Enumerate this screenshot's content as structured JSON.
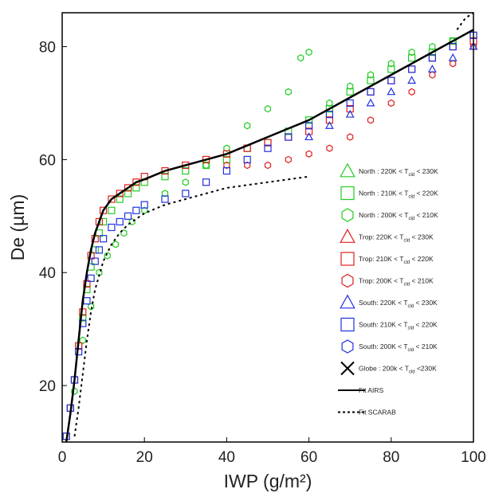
{
  "chart_data": {
    "type": "scatter",
    "xlabel": "IWP (g/m²)",
    "ylabel": "De (µm)",
    "xlim": [
      0,
      100
    ],
    "ylim": [
      10,
      86
    ],
    "xticks": [
      0,
      20,
      40,
      60,
      80,
      100
    ],
    "yticks": [
      20,
      40,
      60,
      80
    ],
    "grid": false,
    "legend_position": "right",
    "legend": [
      {
        "name": "North : 220K < T",
        "sub": "cld",
        "tail": " < 230K",
        "marker": "triangle",
        "color": "#22cc22"
      },
      {
        "name": "North : 210K < T",
        "sub": "cld",
        "tail": " < 220K",
        "marker": "square",
        "color": "#22cc22"
      },
      {
        "name": "North : 200K < T",
        "sub": "cld",
        "tail": " < 210K",
        "marker": "hexagon",
        "color": "#22cc22"
      },
      {
        "name": "Trop: 220K < T",
        "sub": "cld",
        "tail": " < 230K",
        "marker": "triangle",
        "color": "#e02020"
      },
      {
        "name": "Trop: 210K < T",
        "sub": "cld",
        "tail": " < 220K",
        "marker": "square",
        "color": "#e02020"
      },
      {
        "name": "Trop: 200K < T",
        "sub": "cld",
        "tail": " < 210K",
        "marker": "hexagon",
        "color": "#e02020"
      },
      {
        "name": "South: 220K < T",
        "sub": "cld",
        "tail": " < 230K",
        "marker": "triangle",
        "color": "#2030e0"
      },
      {
        "name": "South: 210K < T",
        "sub": "cld",
        "tail": " < 220K",
        "marker": "square",
        "color": "#2030e0"
      },
      {
        "name": "South: 200K < T",
        "sub": "cld",
        "tail": " < 210K",
        "marker": "hexagon",
        "color": "#2030e0"
      },
      {
        "name": "Globe : 200k < T",
        "sub": "cld",
        "tail": " <230K",
        "marker": "x",
        "color": "#000000"
      },
      {
        "name": "Fit AIRS",
        "marker": "solid-line",
        "color": "#000000"
      },
      {
        "name": "Fit SCARAB",
        "marker": "dotted-line",
        "color": "#000000"
      }
    ],
    "series": [
      {
        "legend_index": 1,
        "x": [
          1,
          2,
          3,
          4,
          5,
          6,
          7,
          8,
          9,
          10,
          12,
          14,
          16,
          18,
          20,
          25,
          30,
          35,
          40,
          45,
          50,
          55,
          60,
          65,
          70,
          75,
          80,
          85,
          90,
          95,
          100
        ],
        "y": [
          11,
          16,
          21,
          27,
          32,
          37,
          41,
          44,
          47,
          49,
          51,
          53,
          54,
          55,
          56,
          57,
          58,
          59,
          60,
          62,
          63,
          65,
          67,
          69,
          72,
          74,
          76,
          78,
          79,
          81,
          82
        ]
      },
      {
        "legend_index": 2,
        "x": [
          3,
          5,
          7,
          9,
          11,
          13,
          15,
          17,
          20,
          25,
          30,
          35,
          40,
          45,
          50,
          55,
          58,
          60,
          65,
          70,
          75,
          80,
          85,
          90,
          95
        ],
        "y": [
          19,
          28,
          34,
          40,
          43,
          45,
          47,
          49,
          51,
          54,
          56,
          59,
          62,
          66,
          69,
          72,
          78,
          79,
          70,
          73,
          75,
          77,
          79,
          80,
          81
        ]
      },
      {
        "legend_index": 4,
        "x": [
          1,
          2,
          3,
          4,
          5,
          6,
          7,
          8,
          9,
          10,
          12,
          14,
          16,
          18,
          20,
          25,
          30,
          35,
          40,
          45,
          50,
          55,
          60,
          65,
          70,
          75,
          80,
          85,
          90,
          95,
          100
        ],
        "y": [
          11,
          16,
          21,
          27,
          33,
          38,
          43,
          46,
          49,
          51,
          53,
          54,
          55,
          56,
          57,
          58,
          59,
          60,
          61,
          62,
          63,
          64,
          65,
          67,
          69,
          72,
          74,
          76,
          78,
          80,
          81
        ]
      },
      {
        "legend_index": 5,
        "x": [
          40,
          45,
          50,
          55,
          60,
          65,
          70,
          75,
          80,
          85,
          90,
          95,
          100
        ],
        "y": [
          59,
          59,
          59,
          60,
          61,
          62,
          64,
          67,
          70,
          72,
          75,
          77,
          80
        ]
      },
      {
        "legend_index": 7,
        "x": [
          1,
          2,
          3,
          4,
          5,
          6,
          7,
          8,
          9,
          10,
          12,
          14,
          16,
          18,
          20,
          25,
          30,
          35,
          40,
          45,
          50,
          55,
          60,
          65,
          70,
          75,
          80,
          85,
          90,
          95,
          100
        ],
        "y": [
          11,
          16,
          21,
          26,
          31,
          35,
          39,
          42,
          44,
          46,
          48,
          49,
          50,
          51,
          52,
          53,
          54,
          56,
          58,
          60,
          62,
          64,
          66,
          68,
          70,
          72,
          74,
          76,
          78,
          80,
          82
        ]
      },
      {
        "legend_index": 6,
        "x": [
          60,
          65,
          70,
          75,
          80,
          85,
          90,
          95,
          100
        ],
        "y": [
          64,
          66,
          68,
          70,
          72,
          74,
          76,
          78,
          80
        ]
      }
    ],
    "fits": [
      {
        "legend_index": 10,
        "x": [
          1,
          2,
          3,
          4,
          5,
          6,
          7,
          8,
          9,
          10,
          12,
          14,
          16,
          18,
          20,
          25,
          30,
          35,
          40,
          45,
          50,
          55,
          60,
          65,
          70,
          75,
          80,
          85,
          90,
          95,
          100
        ],
        "y": [
          10,
          15,
          21,
          28,
          35,
          40,
          44,
          47,
          49,
          51,
          53,
          54,
          55,
          56,
          56.5,
          58,
          59,
          60,
          61,
          62.5,
          64,
          65.5,
          67,
          69,
          71,
          73,
          75,
          77,
          79,
          81,
          83
        ]
      },
      {
        "legend_index": 11,
        "x": [
          3,
          4,
          5,
          6,
          7,
          8,
          10,
          12,
          14,
          16,
          18,
          20,
          25,
          30,
          35,
          40,
          45,
          50,
          55,
          60
        ],
        "y": [
          11,
          16,
          22,
          28,
          33,
          37,
          42,
          45,
          47,
          48.5,
          49.5,
          50.5,
          52,
          53,
          54,
          55,
          55.5,
          56,
          56.5,
          57
        ]
      },
      {
        "legend_index": 11,
        "x": [
          96,
          97,
          98,
          99,
          100
        ],
        "y": [
          83,
          84,
          85,
          85.5,
          86
        ]
      }
    ]
  }
}
